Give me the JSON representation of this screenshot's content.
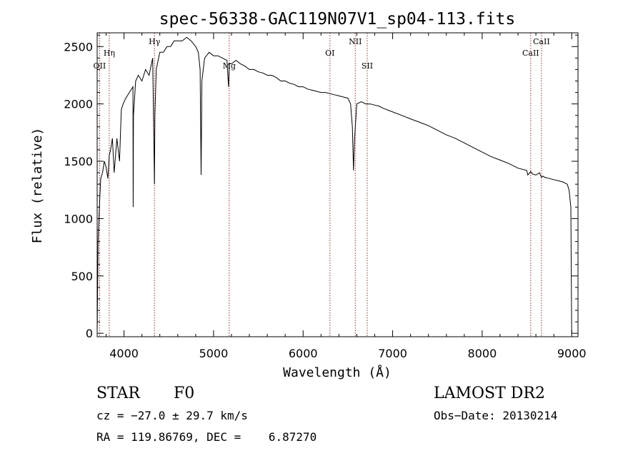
{
  "chart_data": {
    "type": "line",
    "title": "spec-56338-GAC119N07V1_sp04-113.fits",
    "xlabel": "Wavelength (Å)",
    "ylabel": "Flux (relative)",
    "xlim": [
      3700,
      9070
    ],
    "ylim": [
      -30,
      2620
    ],
    "xticks": [
      4000,
      5000,
      6000,
      7000,
      8000,
      9000
    ],
    "yticks": [
      0,
      500,
      1000,
      1500,
      2000,
      2500
    ],
    "grid": false,
    "line_color": "#000000",
    "marker_color": "#a0281e",
    "series": [
      {
        "x": [
          3700,
          3710,
          3720,
          3730,
          3740,
          3760,
          3780,
          3800,
          3820,
          3835,
          3850,
          3870,
          3890,
          3920,
          3950,
          3970,
          3990,
          4020,
          4060,
          4100,
          4102,
          4105,
          4130,
          4160,
          4200,
          4240,
          4280,
          4320,
          4340,
          4345,
          4360,
          4400,
          4440,
          4480,
          4520,
          4560,
          4600,
          4650,
          4700,
          4750,
          4800,
          4830,
          4850,
          4861,
          4870,
          4900,
          4950,
          5000,
          5050,
          5100,
          5150,
          5167,
          5175,
          5200,
          5250,
          5300,
          5350,
          5400,
          5450,
          5500,
          5550,
          5600,
          5650,
          5700,
          5750,
          5800,
          5850,
          5900,
          5950,
          6000,
          6050,
          6100,
          6150,
          6200,
          6250,
          6300,
          6350,
          6400,
          6450,
          6500,
          6530,
          6550,
          6563,
          6575,
          6600,
          6650,
          6700,
          6750,
          6800,
          6850,
          6900,
          7000,
          7100,
          7200,
          7300,
          7400,
          7500,
          7600,
          7700,
          7800,
          7900,
          8000,
          8100,
          8200,
          8300,
          8400,
          8498,
          8510,
          8542,
          8560,
          8600,
          8640,
          8662,
          8680,
          8700,
          8750,
          8800,
          8850,
          8900,
          8950,
          8970,
          8990,
          9000
        ],
        "y": [
          0,
          800,
          1000,
          1200,
          1350,
          1400,
          1500,
          1450,
          1350,
          1550,
          1600,
          1700,
          1400,
          1700,
          1500,
          1950,
          2000,
          2050,
          2100,
          2150,
          1100,
          1900,
          2200,
          2250,
          2200,
          2300,
          2250,
          2400,
          1300,
          1900,
          2300,
          2450,
          2450,
          2500,
          2500,
          2550,
          2550,
          2550,
          2580,
          2550,
          2500,
          2450,
          2300,
          1380,
          2200,
          2400,
          2450,
          2420,
          2420,
          2400,
          2380,
          2150,
          2350,
          2350,
          2380,
          2350,
          2330,
          2300,
          2300,
          2280,
          2270,
          2250,
          2250,
          2230,
          2200,
          2200,
          2180,
          2170,
          2150,
          2150,
          2130,
          2120,
          2110,
          2100,
          2100,
          2090,
          2080,
          2070,
          2060,
          2050,
          2000,
          1800,
          1420,
          1700,
          2000,
          2020,
          2000,
          2000,
          1990,
          1980,
          1960,
          1930,
          1900,
          1870,
          1840,
          1810,
          1770,
          1730,
          1700,
          1660,
          1620,
          1580,
          1540,
          1510,
          1480,
          1440,
          1420,
          1380,
          1410,
          1390,
          1380,
          1400,
          1360,
          1370,
          1360,
          1350,
          1340,
          1330,
          1320,
          1300,
          1250,
          1100,
          0
        ]
      }
    ],
    "line_markers": [
      {
        "label": "OII",
        "x": 3727,
        "row": 3
      },
      {
        "label": "Hη",
        "x": 3835,
        "row": 2
      },
      {
        "label": "Hγ",
        "x": 4340,
        "row": 1
      },
      {
        "label": "Mg",
        "x": 5175,
        "row": 3
      },
      {
        "label": "OI",
        "x": 6300,
        "row": 2
      },
      {
        "label": "NII",
        "x": 6583,
        "row": 1
      },
      {
        "label": "SII",
        "x": 6716,
        "row": 3
      },
      {
        "label": "CaII",
        "x": 8542,
        "row": 2
      },
      {
        "label": "CaII",
        "x": 8662,
        "row": 1
      }
    ]
  },
  "info": {
    "object_class": "STAR",
    "subclass": "F0",
    "survey": "LAMOST DR2",
    "cz": "cz = −27.0 ± 29.7 km/s",
    "obs_date": "Obs−Date: 20130214",
    "coords": "RA = 119.86769, DEC =    6.87270"
  }
}
